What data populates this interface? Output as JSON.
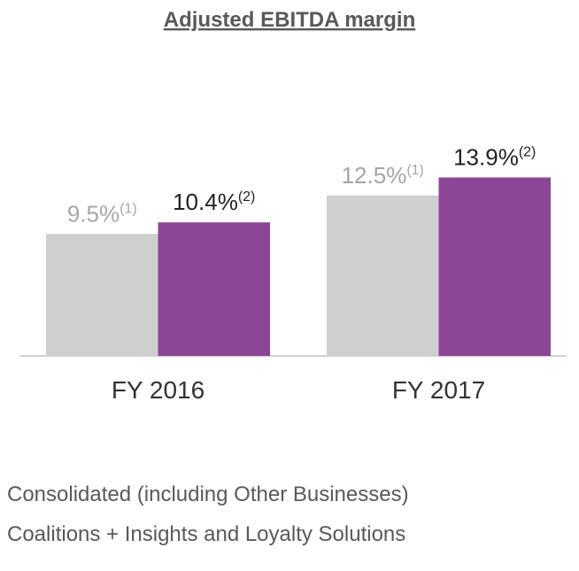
{
  "chart_data": {
    "type": "bar",
    "title": "Adjusted EBITDA margin",
    "categories": [
      "FY 2016",
      "FY 2017"
    ],
    "series": [
      {
        "name": "Consolidated (including Other Businesses)",
        "color": "#d0cfcf",
        "label_color": "#a6a6a6",
        "footnote": "(1)",
        "values": [
          9.5,
          12.5
        ],
        "value_labels": [
          "9.5%",
          "12.5%"
        ]
      },
      {
        "name": "Coalitions + Insights and Loyalty Solutions",
        "color": "#8b4796",
        "label_color": "#222222",
        "footnote": "(2)",
        "values": [
          10.4,
          13.9
        ],
        "value_labels": [
          "10.4%",
          "13.9%"
        ]
      }
    ],
    "ylim": [
      0,
      20
    ]
  }
}
